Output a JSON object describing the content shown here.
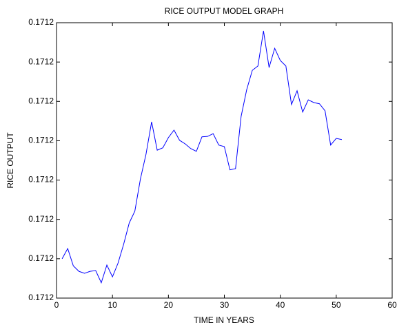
{
  "chart_data": {
    "type": "line",
    "title": "RICE OUTPUT MODEL GRAPH",
    "x_label": "TIME IN YEARS",
    "y_label": "RICE OUTPUT",
    "x": [
      1,
      2,
      3,
      4,
      5,
      6,
      7,
      8,
      9,
      10,
      11,
      12,
      13,
      14,
      15,
      16,
      17,
      18,
      19,
      20,
      21,
      22,
      23,
      24,
      25,
      26,
      27,
      28,
      29,
      30,
      31,
      32,
      33,
      34,
      35,
      36,
      37,
      38,
      39,
      40,
      41,
      42,
      43,
      44,
      45,
      46,
      47,
      48,
      49,
      50,
      51
    ],
    "series": [
      {
        "name": "RICE OUTPUT",
        "color": "#0000ff",
        "values": [
          0.171201,
          0.17120126,
          0.17120082,
          0.17120068,
          0.17120063,
          0.17120068,
          0.1712007,
          0.17120039,
          0.17120084,
          0.17120054,
          0.17120089,
          0.17120137,
          0.17120191,
          0.17120221,
          0.17120303,
          0.17120366,
          0.17120448,
          0.17120376,
          0.17120382,
          0.17120408,
          0.17120427,
          0.17120401,
          0.17120392,
          0.1712038,
          0.17120373,
          0.1712041,
          0.17120411,
          0.17120418,
          0.17120389,
          0.17120385,
          0.17120326,
          0.17120329,
          0.17120462,
          0.1712053,
          0.17120579,
          0.1712059,
          0.17120679,
          0.17120586,
          0.17120635,
          0.17120604,
          0.1712059,
          0.17120492,
          0.17120527,
          0.17120473,
          0.17120504,
          0.17120497,
          0.17120494,
          0.17120476,
          0.17120389,
          0.17120406,
          0.17120403
        ]
      }
    ],
    "xlim": [
      0,
      60
    ],
    "xticks": [
      0,
      10,
      20,
      30,
      40,
      50,
      60
    ],
    "ylim": [
      0.1712,
      0.171207
    ],
    "yticks": [
      {
        "value": 0.1712,
        "label": "0.1712"
      },
      {
        "value": 0.171201,
        "label": "0.1712"
      },
      {
        "value": 0.171202,
        "label": "0.1712"
      },
      {
        "value": 0.171203,
        "label": "0.1712"
      },
      {
        "value": 0.171204,
        "label": "0.1712"
      },
      {
        "value": 0.171205,
        "label": "0.1712"
      },
      {
        "value": 0.171206,
        "label": "0.1712"
      },
      {
        "value": 0.171207,
        "label": "0.1712"
      }
    ],
    "grid": false
  }
}
